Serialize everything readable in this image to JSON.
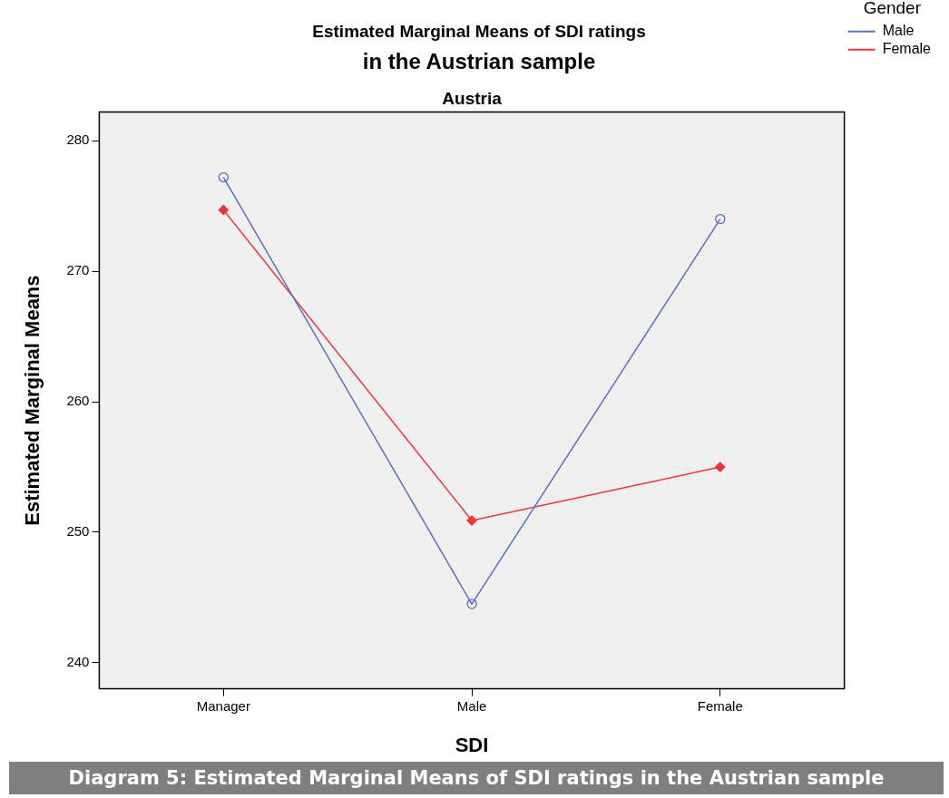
{
  "chart_data": {
    "type": "line",
    "title": "Estimated Marginal Means of SDI ratings",
    "subtitle": "in the Austrian sample",
    "xlabel": "SDI",
    "ylabel": "Estimated Marginal Means",
    "legend_title": "Gender",
    "annotations": [
      "Austria",
      "Diagram 5: Estimated Marginal Means of SDI ratings in the Austrian sample"
    ],
    "categories": [
      "Manager",
      "Male",
      "Female"
    ],
    "series": [
      {
        "name": "Male",
        "color": "#5a6fc4",
        "marker": "circle",
        "values": [
          277.2,
          244.5,
          274.0
        ]
      },
      {
        "name": "Female",
        "color": "#f0343c",
        "marker": "diamond",
        "values": [
          274.7,
          250.9,
          255.0
        ]
      }
    ],
    "ylim": [
      238,
      282.2
    ],
    "yticks": [
      240,
      250,
      260,
      270,
      280
    ],
    "grid": false,
    "legend": "top right",
    "line_style": "solid"
  }
}
